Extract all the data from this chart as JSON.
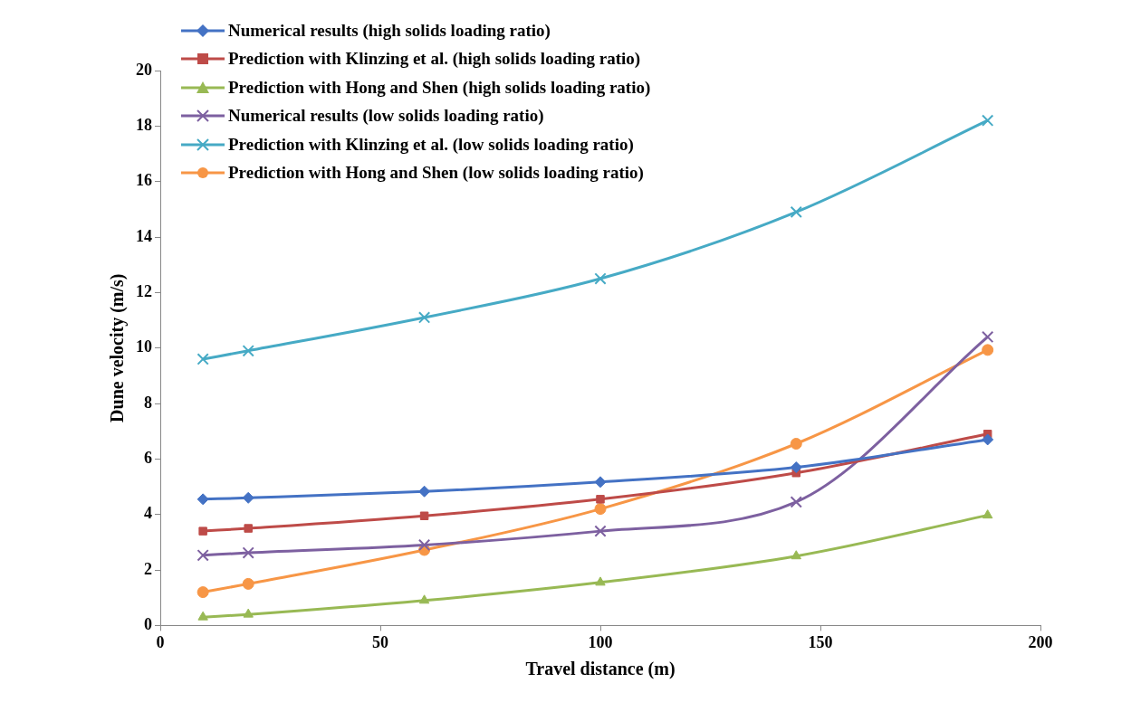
{
  "chart_data": {
    "type": "line",
    "xlabel": "Travel distance (m)",
    "ylabel": "Dune velocity (m/s)",
    "xlim": [
      0,
      200
    ],
    "xticks": [
      0,
      50,
      100,
      150,
      200
    ],
    "ylim": [
      0,
      20
    ],
    "yticks": [
      0,
      2,
      4,
      6,
      8,
      10,
      12,
      14,
      16,
      18,
      20
    ],
    "grid": false,
    "legend": "top left",
    "x": [
      9.7,
      20,
      60,
      100,
      144.5,
      188
    ],
    "series": [
      {
        "name": "Numerical results (high solids loading ratio)",
        "color": "#4472c4",
        "marker": "diamond",
        "values": [
          4.55,
          4.6,
          4.83,
          5.17,
          5.7,
          6.7
        ]
      },
      {
        "name": "Prediction with Klinzing et al. (high solids loading ratio)",
        "color": "#be4b48",
        "marker": "square",
        "values": [
          3.4,
          3.5,
          3.95,
          4.55,
          5.5,
          6.9
        ]
      },
      {
        "name": "Prediction with Hong and Shen (high solids loading ratio)",
        "color": "#98b954",
        "marker": "triangle",
        "values": [
          0.3,
          0.4,
          0.9,
          1.55,
          2.5,
          3.97
        ]
      },
      {
        "name": "Numerical results (low solids loading ratio)",
        "color": "#7d60a0",
        "marker": "cross",
        "values": [
          2.53,
          2.62,
          2.9,
          3.4,
          4.45,
          10.4
        ]
      },
      {
        "name": "Prediction with Klinzing et al. (low solids loading ratio)",
        "color": "#46aac5",
        "marker": "cross",
        "values": [
          9.6,
          9.9,
          11.1,
          12.5,
          14.9,
          18.2
        ]
      },
      {
        "name": "Prediction with Hong and Shen (low solids loading ratio)",
        "color": "#f79646",
        "marker": "circle",
        "values": [
          1.2,
          1.5,
          2.72,
          4.2,
          6.55,
          9.93
        ]
      }
    ]
  }
}
